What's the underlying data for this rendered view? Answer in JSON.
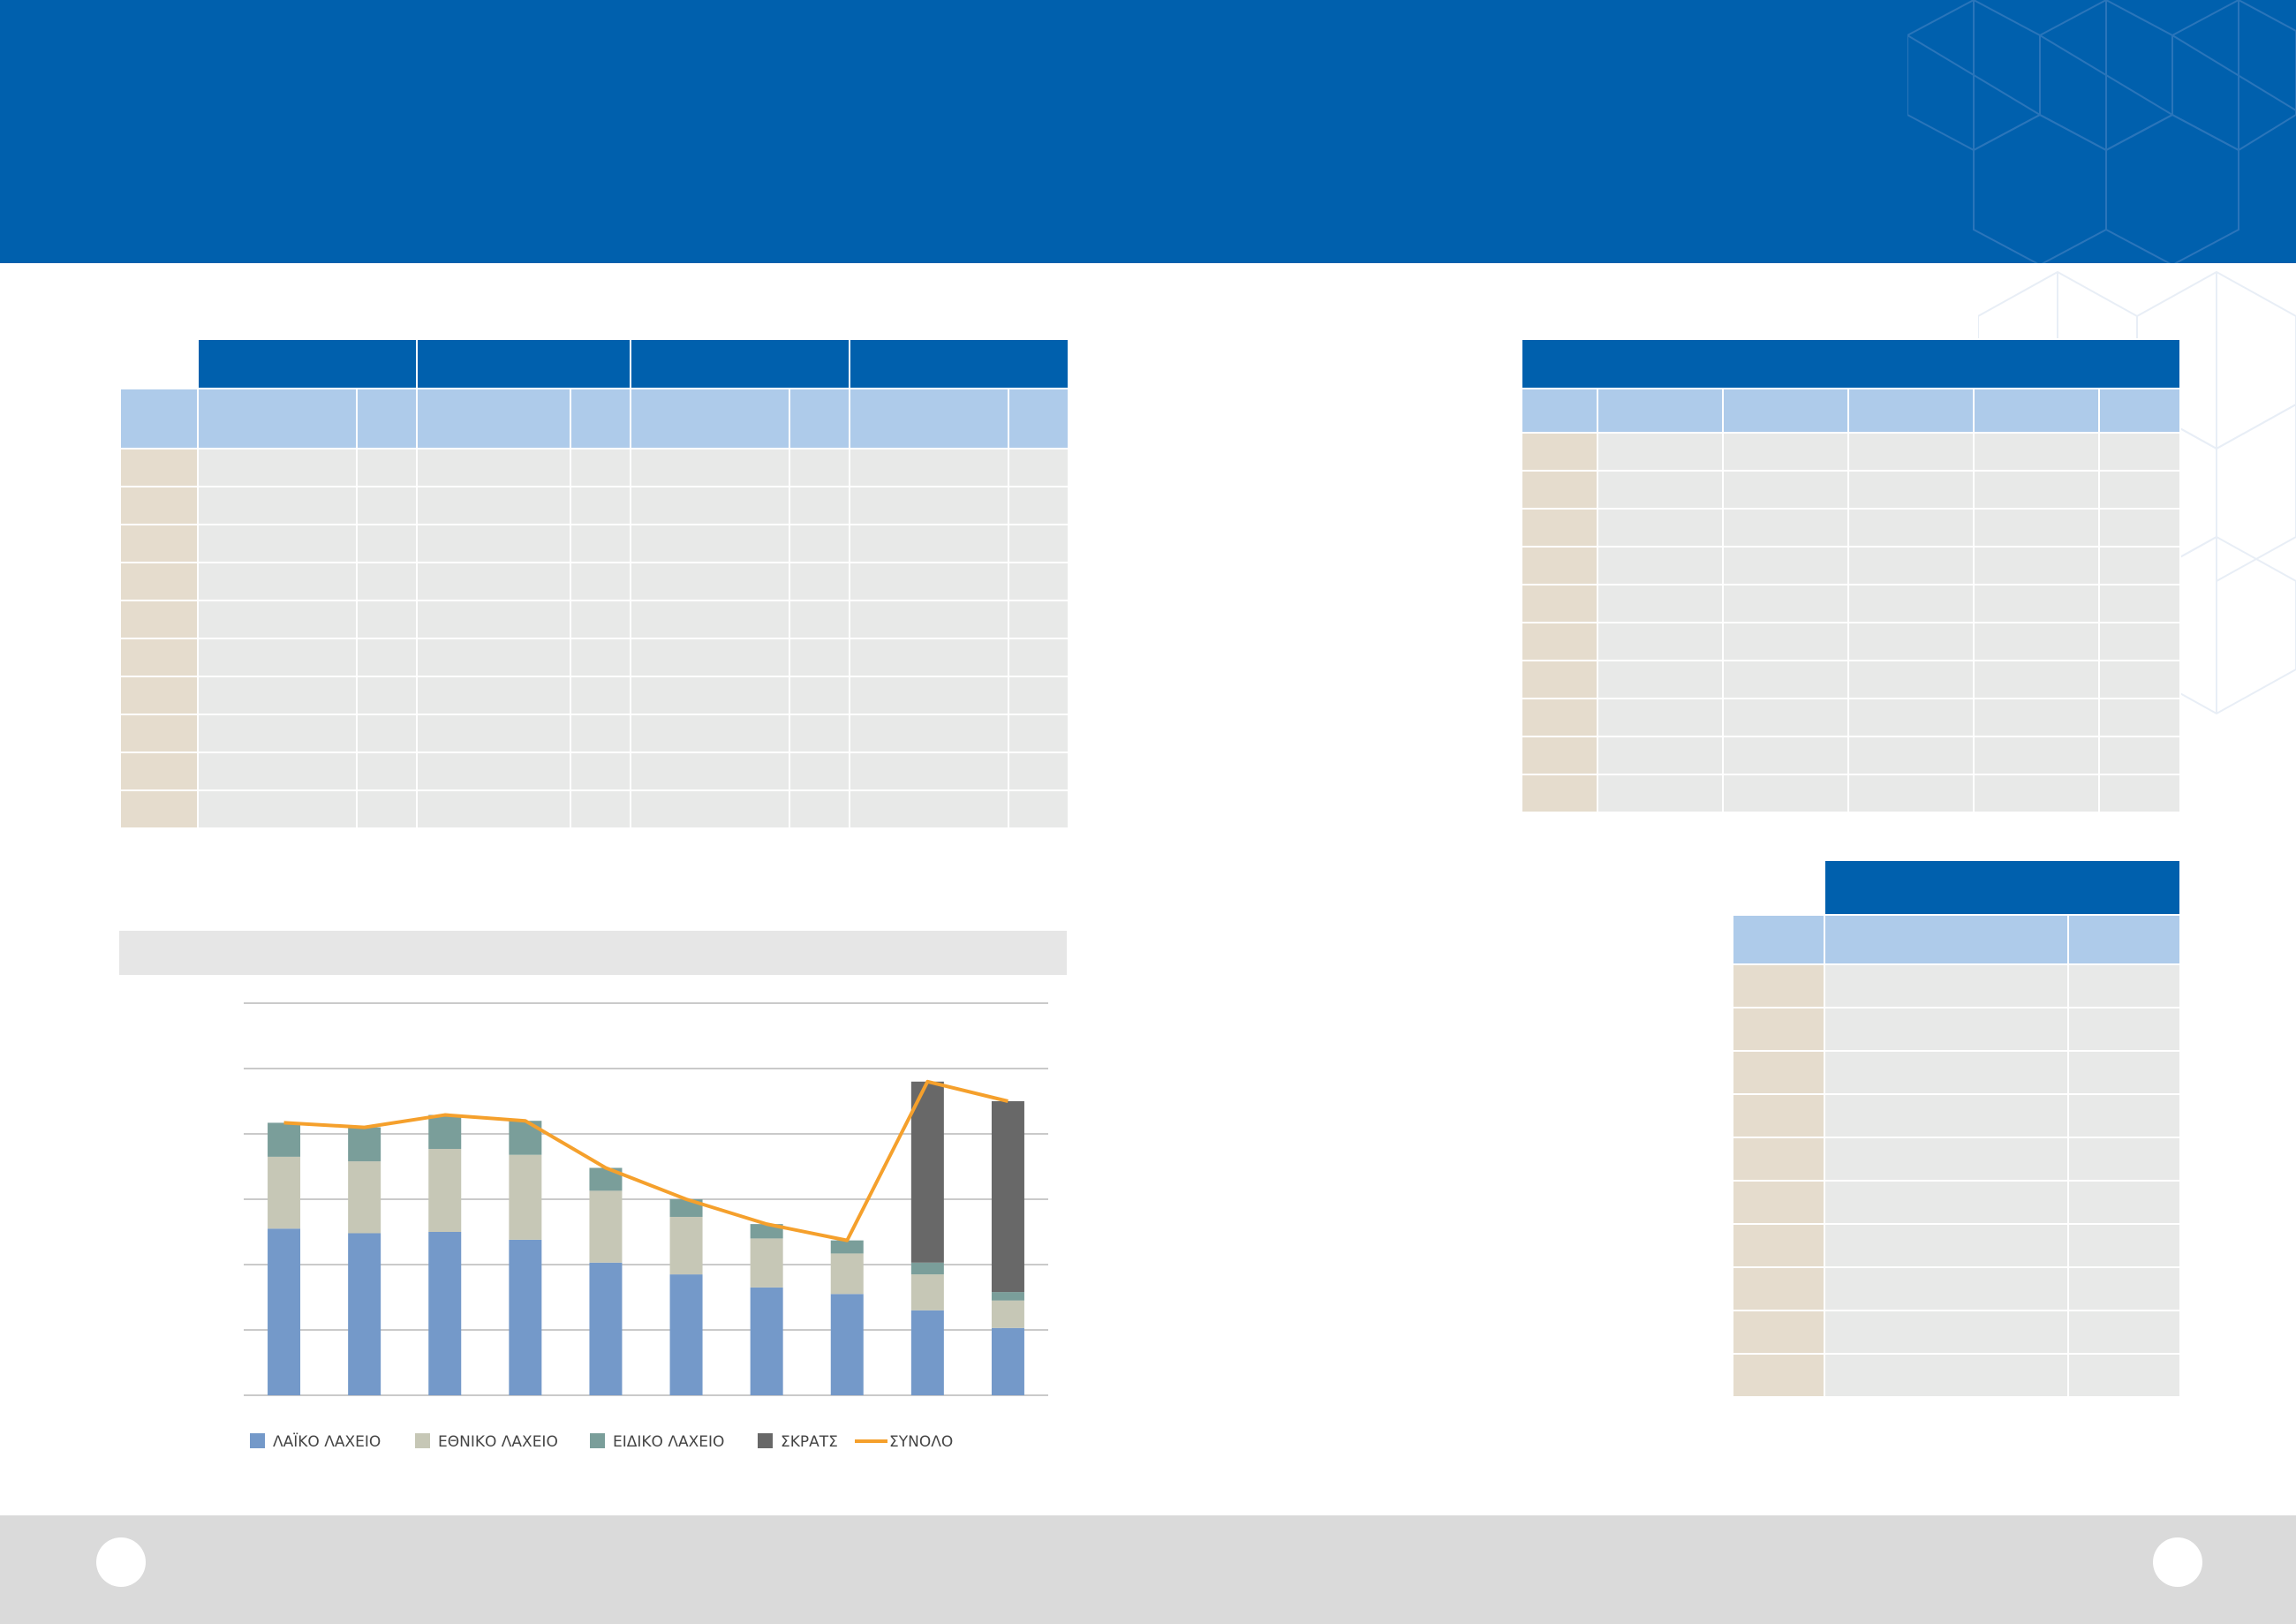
{
  "colors": {
    "brand_blue": "#0060ad",
    "subheader_blue": "#aecbea",
    "row_label_beige": "#e5dccd",
    "cell_gray": "#e8e9e8",
    "total_column": "#dce8f6",
    "footer_gray": "#dadada"
  },
  "table_left": {
    "rows": 10,
    "group_headers": 4,
    "sub_columns": 8
  },
  "table_right_top": {
    "rows": 10,
    "columns": 6
  },
  "table_right_bottom": {
    "rows": 10,
    "columns": 3
  },
  "chart_data": {
    "type": "bar",
    "stacked": true,
    "categories": [
      "",
      "",
      "",
      "",
      "",
      "",
      "",
      "",
      "",
      ""
    ],
    "ylim": [
      0,
      6
    ],
    "grid": true,
    "legend_position": "bottom",
    "series": [
      {
        "name": "ΛΑΪΚΟ ΛΑΧΕΙΟ",
        "color": "#7499c9",
        "values": [
          2.55,
          2.48,
          2.5,
          2.38,
          2.03,
          1.85,
          1.65,
          1.55,
          1.3,
          1.03
        ]
      },
      {
        "name": "ΕΘΝΙΚΟ ΛΑΧΕΙΟ",
        "color": "#c6c7b6",
        "values": [
          1.1,
          1.1,
          1.27,
          1.3,
          1.1,
          0.88,
          0.75,
          0.62,
          0.55,
          0.42
        ]
      },
      {
        "name": "ΕΙΔΙΚΟ ΛΑΧΕΙΟ",
        "color": "#7a9e9a",
        "values": [
          0.52,
          0.52,
          0.52,
          0.52,
          0.35,
          0.27,
          0.22,
          0.2,
          0.18,
          0.13
        ]
      },
      {
        "name": "ΣΚΡΑΤΣ",
        "color": "#686868",
        "values": [
          0,
          0,
          0,
          0,
          0,
          0,
          0,
          0,
          2.77,
          2.92
        ]
      }
    ],
    "line": {
      "name": "ΣΥΝΟΛΟ",
      "color": "#f5a02c",
      "values": [
        4.17,
        4.1,
        4.29,
        4.2,
        3.48,
        3.0,
        2.62,
        2.37,
        4.8,
        4.5
      ]
    }
  }
}
